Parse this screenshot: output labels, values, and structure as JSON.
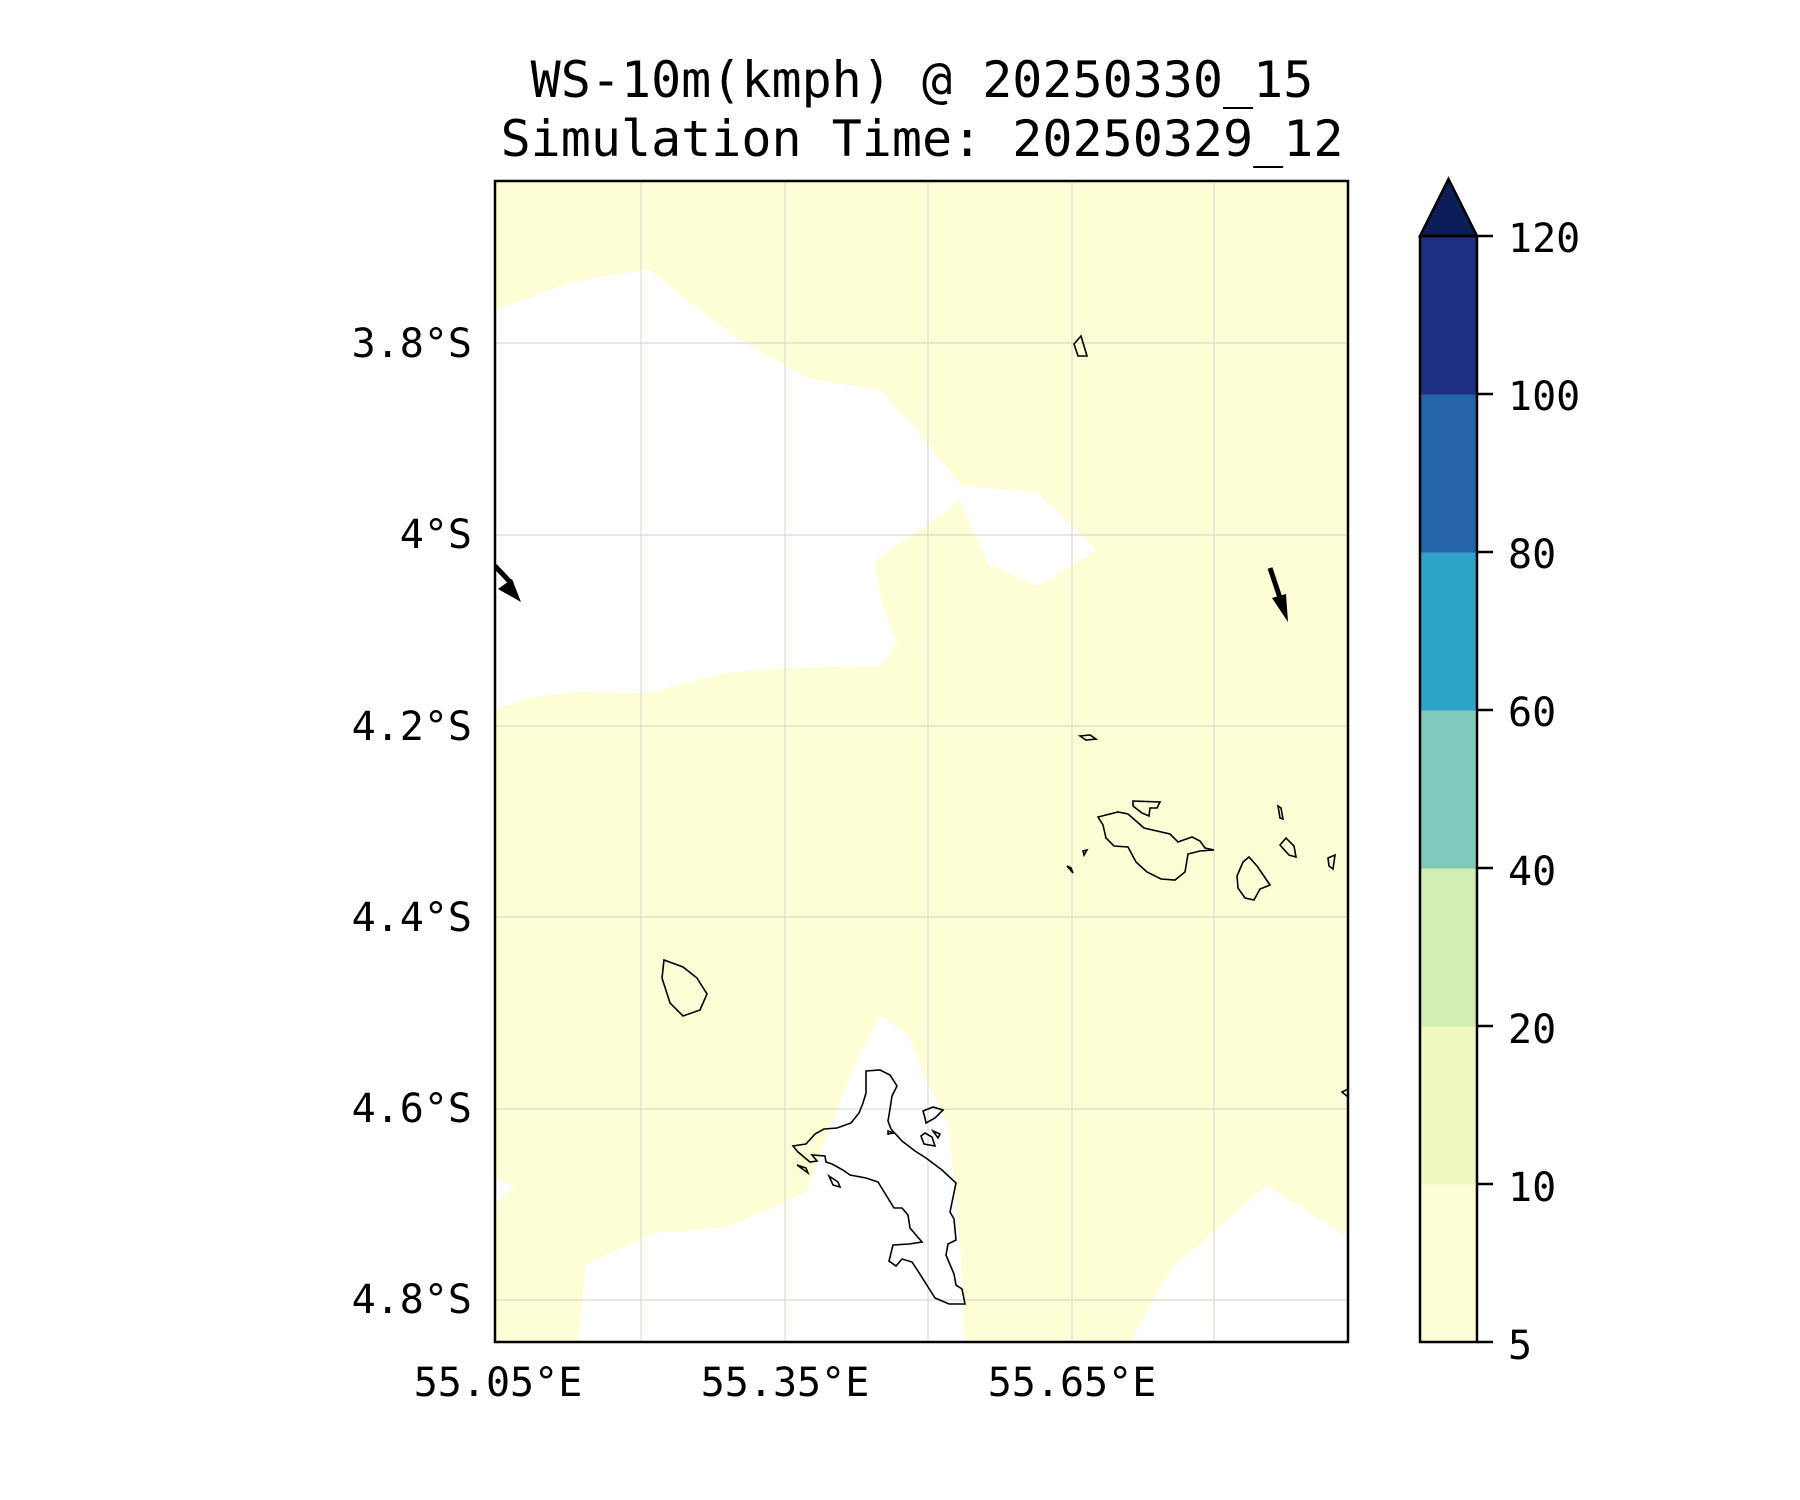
{
  "title_line1": "WS-10m(kmph) @ 20250330_15",
  "title_line2": "Simulation Time: 20250329_12",
  "map": {
    "lat_labels": [
      "3.8°S",
      "4°S",
      "4.2°S",
      "4.4°S",
      "4.6°S",
      "4.8°S"
    ],
    "lon_labels": [
      "55.05°E",
      "55.35°E",
      "55.65°E"
    ],
    "lat_range": [
      -4.845,
      -3.63
    ],
    "lon_range": [
      55.05,
      55.945
    ],
    "grid": true,
    "colors": {
      "fill_5_10": "#fdfed5",
      "below_5": "#ffffff",
      "coastline": "#000000",
      "wind_arrow": "#000000"
    }
  },
  "colorbar": {
    "levels": [
      "5",
      "10",
      "20",
      "40",
      "60",
      "80",
      "100",
      "120"
    ],
    "colors": [
      "#fdfed5",
      "#eff8be",
      "#d2edb3",
      "#7dcabc",
      "#2ea5c8",
      "#2664aa",
      "#1e2e80",
      "#0c1e57"
    ],
    "extend": "max"
  }
}
